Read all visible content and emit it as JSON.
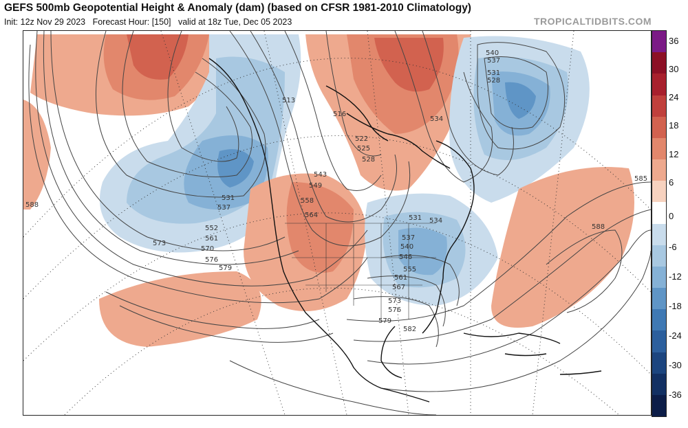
{
  "header": {
    "title": "GEFS 500mb Geopotential Height & Anomaly (dam) (based on CFSR 1981-2010 Climatology)",
    "init": "Init: 12z Nov 29 2023",
    "forecast_hour": "Forecast Hour: [150]",
    "valid": "valid at 18z Tue, Dec 05 2023",
    "site": "TROPICALTIDBITS.COM"
  },
  "colorbar": {
    "labels": [
      "36",
      "30",
      "24",
      "18",
      "12",
      "6",
      "0",
      "-6",
      "-12",
      "-18",
      "-24",
      "-30",
      "-36"
    ],
    "colors": [
      "#7b1a86",
      "#8c1025",
      "#a8202d",
      "#c0403c",
      "#d2624f",
      "#e2876c",
      "#eea98e",
      "#f7d2bf",
      "#ffffff",
      "#c9dcec",
      "#a8c8e1",
      "#85b1d6",
      "#5f95c6",
      "#3f79b4",
      "#2c5f9d",
      "#1c457f",
      "#123063",
      "#0c1d48"
    ]
  },
  "contour_labels": [
    "513",
    "516",
    "522",
    "525",
    "528",
    "531",
    "534",
    "537",
    "540",
    "543",
    "549",
    "552",
    "558",
    "561",
    "564",
    "567",
    "570",
    "573",
    "576",
    "579",
    "582",
    "585",
    "588"
  ],
  "map_labels": [
    {
      "text": "513"
    },
    {
      "text": "516"
    },
    {
      "text": "522"
    },
    {
      "text": "525"
    },
    {
      "text": "528"
    },
    {
      "text": "531"
    },
    {
      "text": "537"
    },
    {
      "text": "552"
    },
    {
      "text": "561"
    },
    {
      "text": "573"
    },
    {
      "text": "570"
    },
    {
      "text": "576"
    },
    {
      "text": "579"
    },
    {
      "text": "543"
    },
    {
      "text": "549"
    },
    {
      "text": "558"
    },
    {
      "text": "564"
    },
    {
      "text": "540"
    },
    {
      "text": "537"
    },
    {
      "text": "531"
    },
    {
      "text": "528"
    },
    {
      "text": "534"
    },
    {
      "text": "531"
    },
    {
      "text": "534"
    },
    {
      "text": "537"
    },
    {
      "text": "540"
    },
    {
      "text": "546"
    },
    {
      "text": "555"
    },
    {
      "text": "561"
    },
    {
      "text": "567"
    },
    {
      "text": "573"
    },
    {
      "text": "576"
    },
    {
      "text": "579"
    },
    {
      "text": "582"
    },
    {
      "text": "585"
    },
    {
      "text": "588"
    },
    {
      "text": "588"
    }
  ]
}
